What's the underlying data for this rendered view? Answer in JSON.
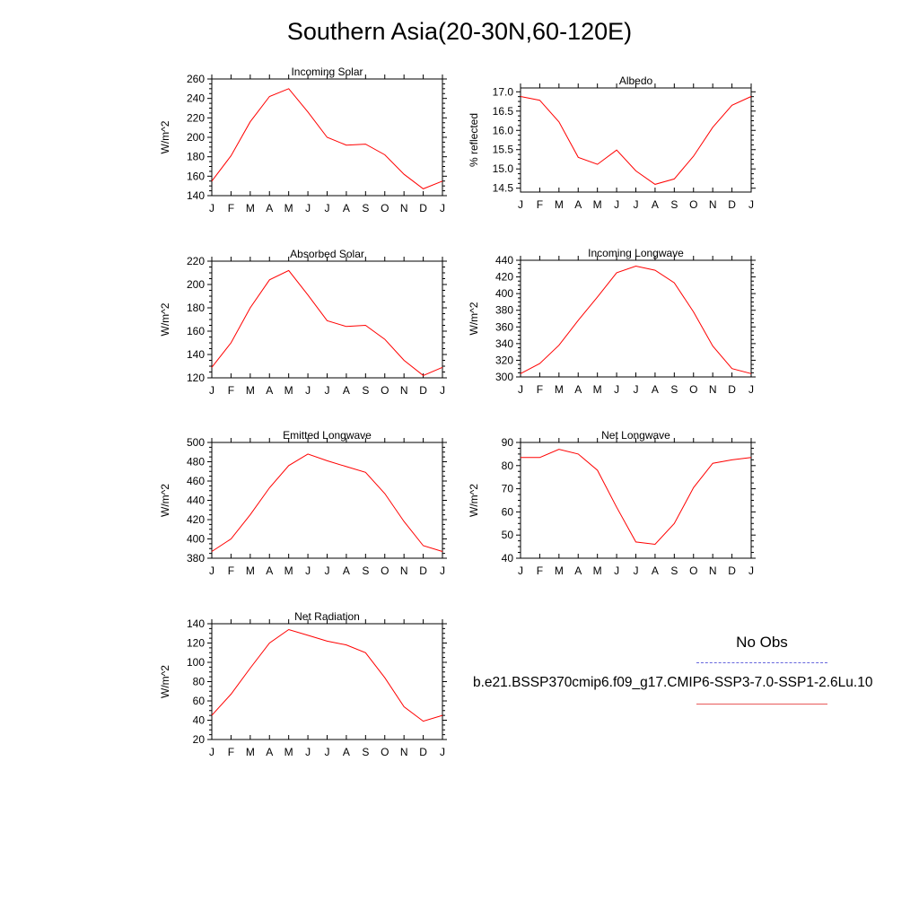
{
  "title": "Southern Asia(20-30N,60-120E)",
  "months": [
    "J",
    "F",
    "M",
    "A",
    "M",
    "J",
    "J",
    "A",
    "S",
    "O",
    "N",
    "D",
    "J"
  ],
  "legend": {
    "obs_label": "No Obs",
    "obs_color": "#6666dd",
    "model_label": "b.e21.BSSP370cmip6.f09_g17.CMIP6-SSP3-7.0-SSP1-2.6Lu.10",
    "model_color": "#ff0000"
  },
  "chart_data": [
    {
      "type": "line",
      "title": "Incoming Solar",
      "ylabel": "W/m^2",
      "ylim": [
        140,
        260
      ],
      "yticks": [
        140,
        160,
        180,
        200,
        220,
        240,
        260
      ],
      "ytick_labels": [
        "140",
        "160",
        "180",
        "200",
        "220",
        "240",
        "260"
      ],
      "values": [
        155,
        181,
        216,
        242,
        250,
        226,
        200,
        192,
        193,
        182,
        162,
        147,
        155
      ]
    },
    {
      "type": "line",
      "title": "Albedo",
      "ylabel": "% reflected",
      "ylim": [
        14.4,
        17.1
      ],
      "yticks": [
        14.5,
        15.0,
        15.5,
        16.0,
        16.5,
        17.0
      ],
      "ytick_labels": [
        "14.5",
        "15.0",
        "15.5",
        "16.0",
        "16.5",
        "17.0"
      ],
      "values": [
        16.88,
        16.78,
        16.22,
        15.3,
        15.12,
        15.49,
        14.95,
        14.6,
        14.74,
        15.33,
        16.08,
        16.65,
        16.88
      ]
    },
    {
      "type": "line",
      "title": "Absorbed Solar",
      "ylabel": "W/m^2",
      "ylim": [
        120,
        220
      ],
      "yticks": [
        120,
        140,
        160,
        180,
        200,
        220
      ],
      "ytick_labels": [
        "120",
        "140",
        "160",
        "180",
        "200",
        "220"
      ],
      "values": [
        129,
        150,
        180,
        204,
        212,
        191,
        169,
        164,
        165,
        153,
        135,
        122,
        129
      ]
    },
    {
      "type": "line",
      "title": "Incoming Longwave",
      "ylabel": "W/m^2",
      "ylim": [
        300,
        440
      ],
      "yticks": [
        300,
        320,
        340,
        360,
        380,
        400,
        420,
        440
      ],
      "ytick_labels": [
        "300",
        "320",
        "340",
        "360",
        "380",
        "400",
        "420",
        "440"
      ],
      "values": [
        304,
        316,
        338,
        368,
        396,
        425,
        433,
        428,
        413,
        378,
        337,
        310,
        304
      ]
    },
    {
      "type": "line",
      "title": "Emitted Longwave",
      "ylabel": "W/m^2",
      "ylim": [
        380,
        500
      ],
      "yticks": [
        380,
        400,
        420,
        440,
        460,
        480,
        500
      ],
      "ytick_labels": [
        "380",
        "400",
        "420",
        "440",
        "460",
        "480",
        "500"
      ],
      "values": [
        387,
        400,
        425,
        453,
        476,
        488,
        481,
        475,
        469,
        447,
        418,
        393,
        387
      ]
    },
    {
      "type": "line",
      "title": "Net Longwave",
      "ylabel": "W/m^2",
      "ylim": [
        40,
        90
      ],
      "yticks": [
        40,
        50,
        60,
        70,
        80,
        90
      ],
      "ytick_labels": [
        "40",
        "50",
        "60",
        "70",
        "80",
        "90"
      ],
      "values": [
        83.5,
        83.5,
        87,
        85,
        78,
        62,
        47,
        46,
        55,
        70.5,
        81,
        82.5,
        83.5
      ]
    },
    {
      "type": "line",
      "title": "Net Radiation",
      "ylabel": "W/m^2",
      "ylim": [
        20,
        140
      ],
      "yticks": [
        20,
        40,
        60,
        80,
        100,
        120,
        140
      ],
      "ytick_labels": [
        "20",
        "40",
        "60",
        "80",
        "100",
        "120",
        "140"
      ],
      "values": [
        45,
        67,
        94,
        120,
        134,
        128,
        122,
        118,
        110,
        84,
        54,
        39,
        45
      ]
    }
  ]
}
